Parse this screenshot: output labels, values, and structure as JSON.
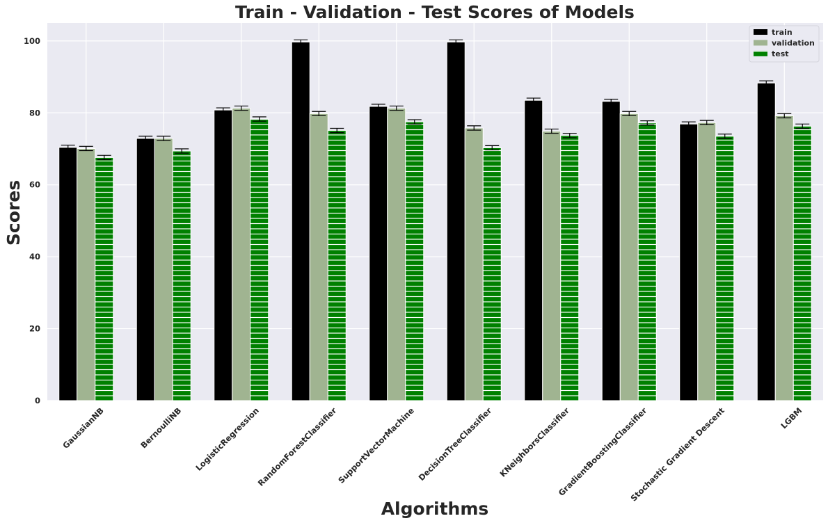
{
  "chart_data": {
    "type": "bar",
    "title": "Train - Validation - Test Scores of Models",
    "xlabel": "Algorithms",
    "ylabel": "Scores",
    "ylim": [
      0,
      105
    ],
    "yticks": [
      0,
      20,
      40,
      60,
      80,
      100
    ],
    "grid": true,
    "legend_position": "top-right",
    "categories": [
      "GaussianNB",
      "BernoulliNB",
      "LogisticRegression",
      "RandomForestClassifier",
      "SupportVectorMachine",
      "DecisionTreeClassifier",
      "KNeighborsClassifier",
      "GradientBoostingClassifier",
      "Stochastic Gradient Descent",
      "LGBM"
    ],
    "series": [
      {
        "name": "train",
        "color": "#000000",
        "hatch": "none",
        "values": [
          70.4,
          72.9,
          80.8,
          99.7,
          81.8,
          99.7,
          83.5,
          83.2,
          76.9,
          88.3
        ]
      },
      {
        "name": "validation",
        "color": "#a0b491",
        "hatch": "none",
        "values": [
          70.1,
          72.9,
          81.3,
          79.8,
          81.3,
          75.8,
          74.9,
          79.8,
          77.3,
          79.2
        ]
      },
      {
        "name": "test",
        "color": "#008000",
        "hatch": "horizontal",
        "values": [
          67.6,
          69.4,
          78.3,
          75.1,
          77.5,
          70.3,
          73.7,
          77.2,
          73.5,
          76.3
        ]
      }
    ],
    "error_bar": 0.6,
    "background_color": "#eaeaf2"
  }
}
